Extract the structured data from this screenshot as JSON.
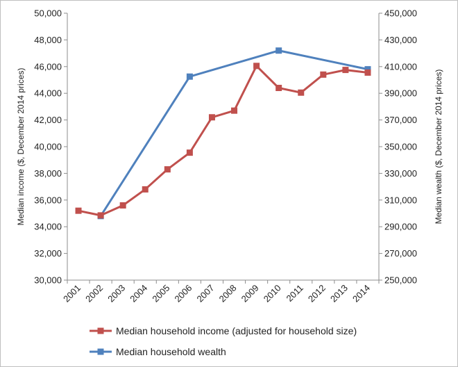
{
  "chart_data": {
    "type": "line",
    "categories": [
      "2001",
      "2002",
      "2003",
      "2004",
      "2005",
      "2006",
      "2007",
      "2008",
      "2009",
      "2010",
      "2011",
      "2012",
      "2013",
      "2014"
    ],
    "y_left": {
      "label": "Median income ($, December 2014 prices)",
      "range": [
        30000,
        50000
      ],
      "ticks": [
        "30,000",
        "32,000",
        "34,000",
        "36,000",
        "38,000",
        "40,000",
        "42,000",
        "44,000",
        "46,000",
        "48,000",
        "50,000"
      ]
    },
    "y_right": {
      "label": "Median wealth ($, December 2014 prices)",
      "range": [
        250000,
        450000
      ],
      "ticks": [
        "250,000",
        "270,000",
        "290,000",
        "310,000",
        "330,000",
        "350,000",
        "370,000",
        "390,000",
        "410,000",
        "430,000",
        "450,000"
      ]
    },
    "grid": false,
    "legend_position": "bottom",
    "series": [
      {
        "name": "Median household income (adjusted for household size)",
        "axis": "left",
        "color": "#c0504d",
        "marker": "square",
        "points": [
          {
            "x": "2001",
            "y": 35200
          },
          {
            "x": "2002",
            "y": 34850
          },
          {
            "x": "2003",
            "y": 35600
          },
          {
            "x": "2004",
            "y": 36800
          },
          {
            "x": "2005",
            "y": 38300
          },
          {
            "x": "2006",
            "y": 39550
          },
          {
            "x": "2007",
            "y": 42200
          },
          {
            "x": "2008",
            "y": 42700
          },
          {
            "x": "2009",
            "y": 46050
          },
          {
            "x": "2010",
            "y": 44400
          },
          {
            "x": "2011",
            "y": 44050
          },
          {
            "x": "2012",
            "y": 45400
          },
          {
            "x": "2013",
            "y": 45750
          },
          {
            "x": "2014",
            "y": 45550
          }
        ]
      },
      {
        "name": "Median household wealth",
        "axis": "right",
        "color": "#4f81bd",
        "marker": "square",
        "points": [
          {
            "x": "2002",
            "y": 298000
          },
          {
            "x": "2006",
            "y": 402500
          },
          {
            "x": "2010",
            "y": 422000
          },
          {
            "x": "2014",
            "y": 408000
          }
        ]
      }
    ]
  }
}
